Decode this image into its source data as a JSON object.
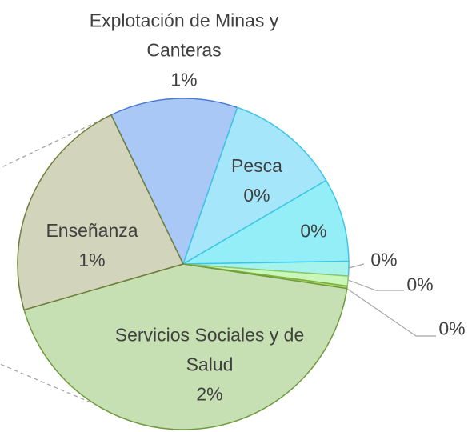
{
  "chart_data": {
    "type": "pie",
    "categories": [
      "Explotación de Minas y Canteras",
      "Pesca",
      null,
      null,
      null,
      null,
      "Servicios Sociales y de Salud",
      "Enseñanza"
    ],
    "values": [
      0.52,
      0.47,
      0.34,
      0.06,
      0.04,
      0.01,
      1.8,
      0.93
    ],
    "value_labels": [
      "1%",
      "0%",
      "0%",
      "0%",
      "0%",
      "0%",
      "2%",
      "1%"
    ],
    "colors": [
      "#a9c8f6",
      "#a6e6fb",
      "#93eef8",
      "#a6f3ec",
      "#c9f6b9",
      "#a9d872",
      "#c6e0b3",
      "#d2d4bb"
    ],
    "start_angle": -115.8
  }
}
